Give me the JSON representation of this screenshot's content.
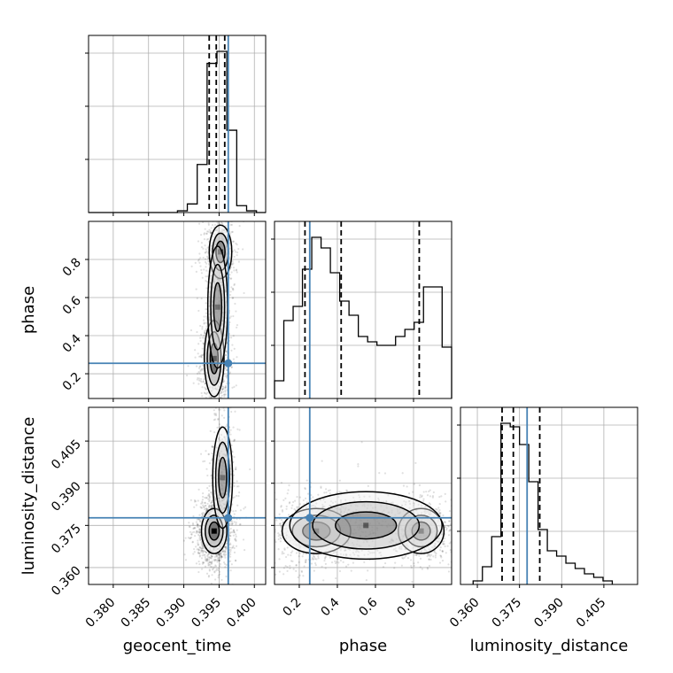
{
  "colors": {
    "truth": "#4682b4",
    "hist": "#000000",
    "grid": "#b0b0b0"
  },
  "chart_data": {
    "type": "corner",
    "parameters": [
      "geocent_time",
      "phase",
      "luminosity_distance"
    ],
    "ranges": {
      "geocent_time": [
        0.3765,
        0.4016
      ],
      "phase": [
        0.07,
        1.0
      ],
      "luminosity_distance": [
        0.354,
        0.417
      ]
    },
    "ticks": {
      "geocent_time": {
        "values": [
          0.38,
          0.385,
          0.39,
          0.395,
          0.4
        ],
        "labels": [
          "0.380",
          "0.385",
          "0.390",
          "0.395",
          "0.400"
        ]
      },
      "phase": {
        "values": [
          0.2,
          0.4,
          0.6,
          0.8
        ],
        "labels": [
          "0.2",
          "0.4",
          "0.6",
          "0.8"
        ]
      },
      "luminosity_distance": {
        "values": [
          0.36,
          0.375,
          0.39,
          0.405
        ],
        "labels": [
          "0.360",
          "0.375",
          "0.390",
          "0.405"
        ]
      }
    },
    "truths": {
      "geocent_time": 0.3963,
      "phase": 0.255,
      "luminosity_distance": 0.3777
    },
    "quantiles": {
      "geocent_time": [
        0.3936,
        0.3946,
        0.3958
      ],
      "phase": [
        0.23,
        0.42,
        0.83
      ],
      "luminosity_distance": [
        0.3688,
        0.3728,
        0.3822
      ]
    },
    "histograms": {
      "geocent_time": {
        "edges": [
          0.3765,
          0.3779,
          0.3793,
          0.3807,
          0.3821,
          0.3835,
          0.3849,
          0.3863,
          0.3877,
          0.3891,
          0.3905,
          0.3919,
          0.3933,
          0.3947,
          0.3961,
          0.3975,
          0.3989,
          0.4003,
          0.4016
        ],
        "counts": [
          0,
          0,
          0,
          0,
          0,
          0,
          0,
          0,
          0,
          0.01,
          0.05,
          0.28,
          0.87,
          0.94,
          0.48,
          0.04,
          0.01,
          0
        ]
      },
      "phase": {
        "edges": [
          0.07,
          0.1189,
          0.1678,
          0.2167,
          0.2656,
          0.3145,
          0.3634,
          0.4123,
          0.4612,
          0.5101,
          0.559,
          0.6079,
          0.6568,
          0.7057,
          0.7546,
          0.8035,
          0.8524,
          0.9013,
          0.9502,
          1.0
        ],
        "counts": [
          0.1,
          0.44,
          0.52,
          0.73,
          0.91,
          0.85,
          0.71,
          0.55,
          0.47,
          0.35,
          0.32,
          0.3,
          0.3,
          0.35,
          0.39,
          0.43,
          0.63,
          0.63,
          0.29
        ]
      },
      "luminosity_distance": {
        "edges": [
          0.3585,
          0.3618,
          0.3651,
          0.3684,
          0.3717,
          0.375,
          0.3783,
          0.3816,
          0.3849,
          0.3882,
          0.3915,
          0.3948,
          0.3981,
          0.4014,
          0.4047,
          0.408
        ],
        "counts": [
          0.02,
          0.1,
          0.27,
          0.91,
          0.89,
          0.79,
          0.58,
          0.31,
          0.19,
          0.16,
          0.12,
          0.09,
          0.06,
          0.04,
          0.02
        ]
      }
    },
    "density_blobs": {
      "phase_vs_geocent_time": [
        {
          "x": 0.3943,
          "y": 0.28,
          "sx": 0.0007,
          "sy": 0.1,
          "w": 1.0
        },
        {
          "x": 0.3952,
          "y": 0.84,
          "sx": 0.0008,
          "sy": 0.07,
          "w": 0.6
        },
        {
          "x": 0.3948,
          "y": 0.55,
          "sx": 0.0007,
          "sy": 0.16,
          "w": 0.35
        }
      ],
      "luminosity_distance_vs_geocent_time": [
        {
          "x": 0.3943,
          "y": 0.373,
          "sx": 0.0009,
          "sy": 0.004,
          "w": 1.0
        },
        {
          "x": 0.3955,
          "y": 0.392,
          "sx": 0.0007,
          "sy": 0.009,
          "w": 0.35
        }
      ],
      "luminosity_distance_vs_phase": [
        {
          "x": 0.29,
          "y": 0.373,
          "sx": 0.09,
          "sy": 0.004,
          "w": 1.0
        },
        {
          "x": 0.84,
          "y": 0.373,
          "sx": 0.06,
          "sy": 0.004,
          "w": 0.6
        },
        {
          "x": 0.55,
          "y": 0.375,
          "sx": 0.2,
          "sy": 0.006,
          "w": 0.45
        }
      ]
    },
    "grid": true
  }
}
